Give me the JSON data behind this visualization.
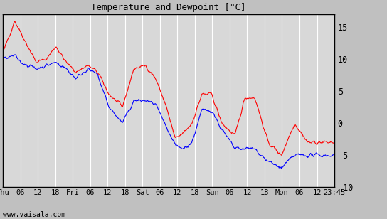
{
  "title": "Temperature and Dewpoint [°C]",
  "ylim": [
    -10,
    17
  ],
  "yticks": [
    -10,
    -5,
    0,
    5,
    10,
    15
  ],
  "bg_color": "#c0c0c0",
  "plot_bg_color": "#d8d8d8",
  "grid_color": "#ffffff",
  "temp_color": "red",
  "dew_color": "blue",
  "watermark": "www.vaisala.com",
  "xtick_labels": [
    "Thu",
    "06",
    "12",
    "18",
    "Fri",
    "06",
    "12",
    "18",
    "Sat",
    "06",
    "12",
    "18",
    "Sun",
    "06",
    "12",
    "18",
    "Mon",
    "06",
    "12",
    "23:45"
  ],
  "n_points": 600,
  "temp_xp": [
    0,
    0.035,
    0.055,
    0.1,
    0.13,
    0.16,
    0.19,
    0.22,
    0.255,
    0.285,
    0.32,
    0.36,
    0.395,
    0.43,
    0.46,
    0.49,
    0.52,
    0.545,
    0.57,
    0.6,
    0.63,
    0.66,
    0.7,
    0.73,
    0.76,
    0.8,
    0.84,
    0.88,
    0.92,
    0.96,
    1.0
  ],
  "temp_yp": [
    11,
    16,
    14,
    9.5,
    10,
    12,
    9.5,
    8,
    9,
    8,
    4.5,
    2.5,
    8.5,
    9,
    7,
    3,
    -2.5,
    -1.5,
    0,
    4.5,
    4.5,
    0,
    -2,
    4,
    4,
    -3,
    -5,
    0,
    -3,
    -3,
    -3
  ],
  "dew_xp": [
    0,
    0.035,
    0.055,
    0.1,
    0.13,
    0.16,
    0.19,
    0.22,
    0.255,
    0.285,
    0.32,
    0.36,
    0.395,
    0.43,
    0.46,
    0.49,
    0.52,
    0.545,
    0.57,
    0.6,
    0.63,
    0.66,
    0.7,
    0.73,
    0.76,
    0.8,
    0.84,
    0.88,
    0.92,
    0.96,
    1.0
  ],
  "dew_yp": [
    10,
    10.5,
    9.5,
    8.5,
    9,
    9.5,
    8.5,
    7,
    8.5,
    7.5,
    2.5,
    0,
    3.5,
    3.5,
    3,
    -0.5,
    -3.5,
    -4,
    -3,
    2,
    2,
    -1,
    -4,
    -4,
    -4,
    -6,
    -7,
    -5,
    -5,
    -5,
    -5
  ]
}
